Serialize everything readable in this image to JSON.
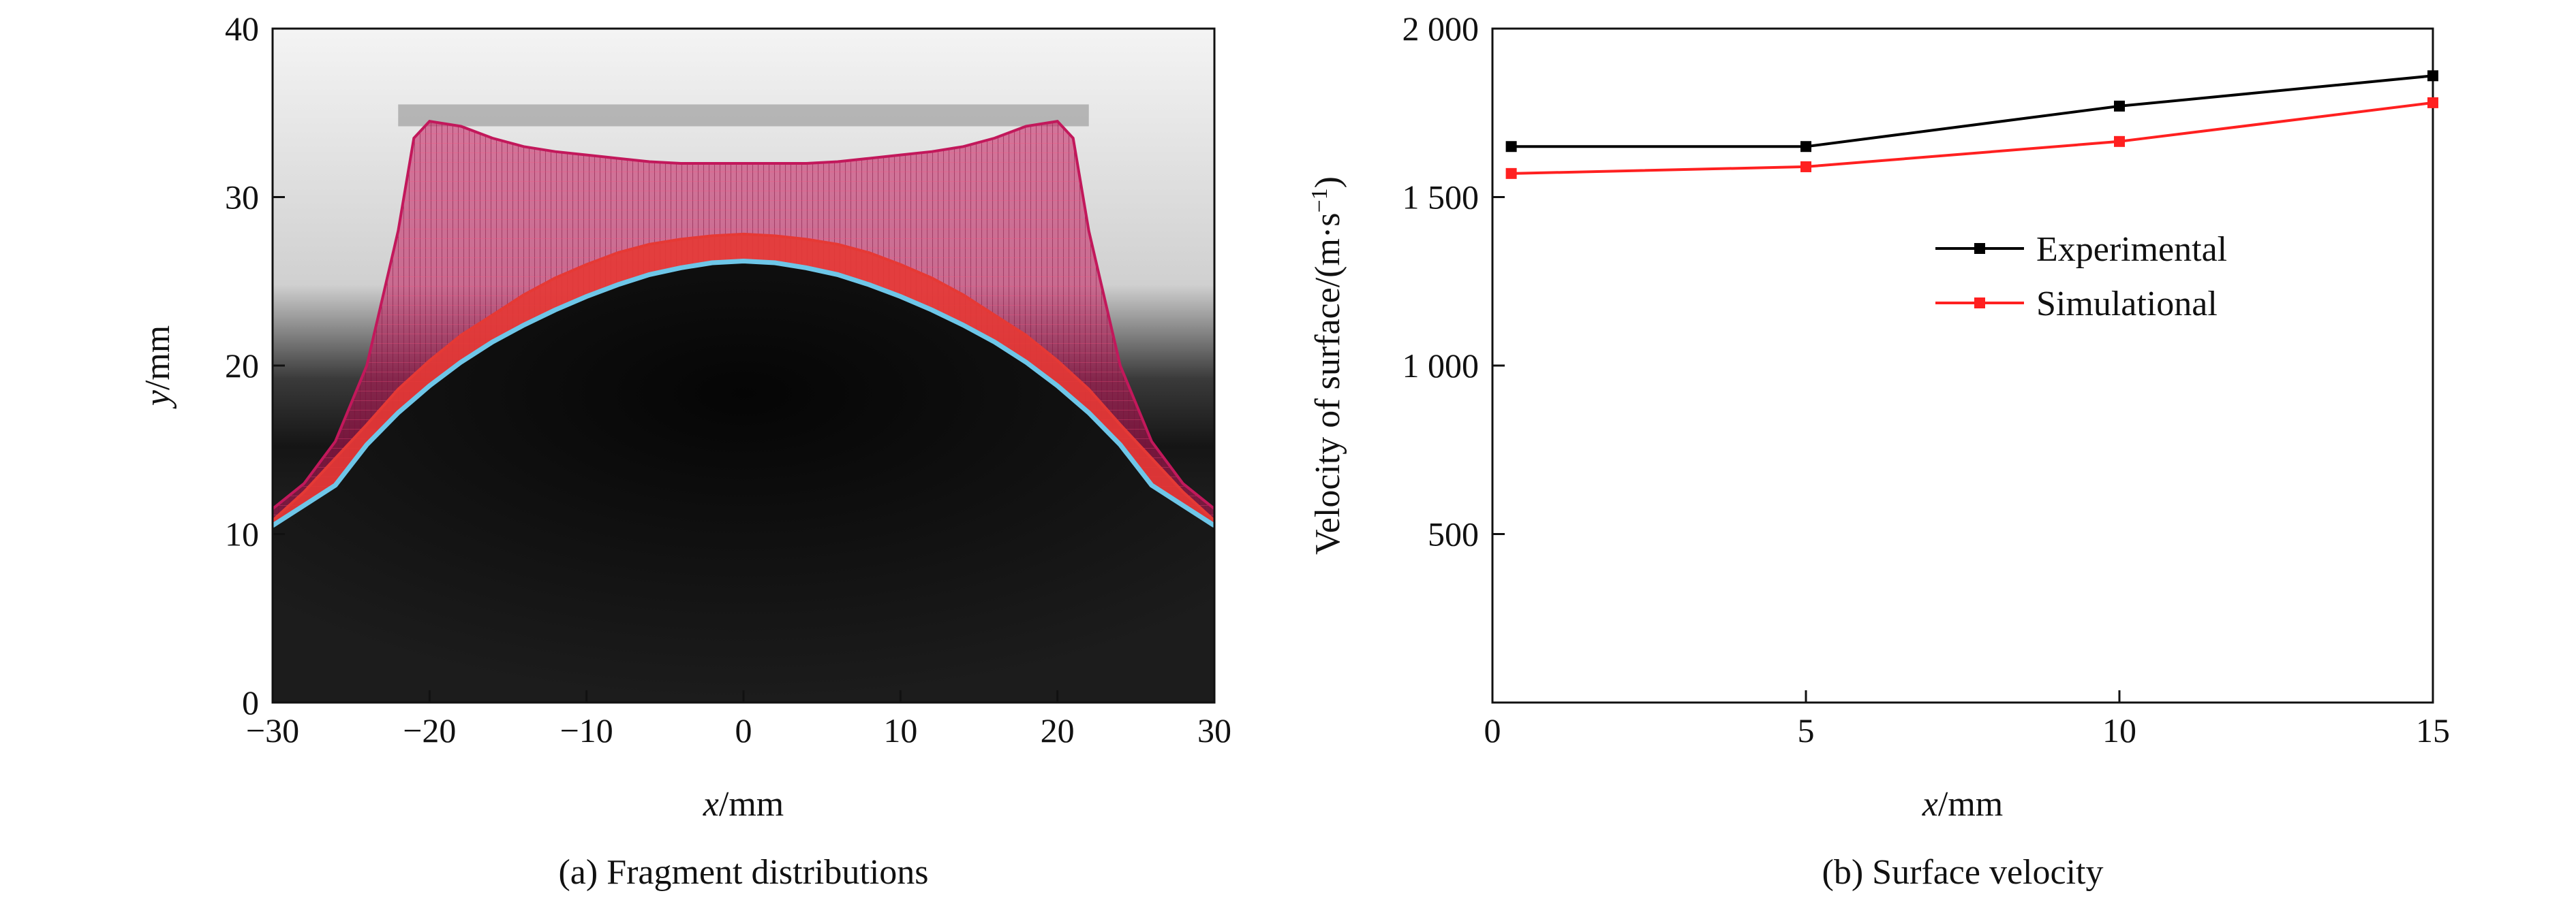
{
  "chart_data": [
    {
      "panel": "a",
      "type": "line",
      "caption": "(a) Fragment distributions",
      "xlabel": {
        "var": "x",
        "unit": "/mm"
      },
      "ylabel": {
        "var": "y",
        "unit": "/mm"
      },
      "xlim": [
        -30,
        30
      ],
      "ylim": [
        0,
        40
      ],
      "xticks": [
        -30,
        -20,
        -10,
        0,
        10,
        20,
        30
      ],
      "xtick_labels": [
        "−30",
        "−20",
        "−10",
        "0",
        "10",
        "20",
        "30"
      ],
      "yticks": [
        0,
        10,
        20,
        30,
        40
      ],
      "ytick_labels": [
        "0",
        "10",
        "20",
        "30",
        "40"
      ],
      "background": "radiograph",
      "series": [
        {
          "color": "#c2185b",
          "x": [
            -30,
            -28,
            -26,
            -24,
            -22,
            -21,
            -20,
            -18,
            -16,
            -14,
            -12,
            -10,
            -8,
            -6,
            -4,
            -2,
            0,
            2,
            4,
            6,
            8,
            10,
            12,
            14,
            16,
            18,
            20,
            21,
            22,
            24,
            26,
            28,
            30
          ],
          "y": [
            11.5,
            13,
            15.5,
            20,
            28,
            33.5,
            34.5,
            34.2,
            33.5,
            33,
            32.7,
            32.5,
            32.3,
            32.1,
            32,
            32,
            32,
            32,
            32,
            32.1,
            32.3,
            32.5,
            32.7,
            33,
            33.5,
            34.2,
            34.5,
            33.5,
            28,
            20,
            15.5,
            13,
            11.5
          ]
        },
        {
          "color": "#e53935",
          "x": [
            -30,
            -28,
            -26,
            -24,
            -22,
            -20,
            -18,
            -16,
            -14,
            -12,
            -10,
            -8,
            -6,
            -4,
            -2,
            0,
            2,
            4,
            6,
            8,
            10,
            12,
            14,
            16,
            18,
            20,
            22,
            24,
            26,
            28,
            30
          ],
          "y": [
            10.8,
            12.5,
            14.5,
            16.5,
            18.6,
            20.3,
            21.8,
            23.0,
            24.2,
            25.2,
            26.0,
            26.7,
            27.2,
            27.5,
            27.7,
            27.8,
            27.7,
            27.5,
            27.2,
            26.7,
            26.0,
            25.2,
            24.2,
            23.0,
            21.8,
            20.3,
            18.6,
            16.5,
            14.5,
            12.5,
            10.8
          ]
        },
        {
          "color": "#6ec6e8",
          "x": [
            -30,
            -28,
            -26,
            -24,
            -22,
            -20,
            -18,
            -16,
            -14,
            -12,
            -10,
            -8,
            -6,
            -4,
            -2,
            0,
            2,
            4,
            6,
            8,
            10,
            12,
            14,
            16,
            18,
            20,
            22,
            24,
            26,
            28,
            30
          ],
          "y": [
            10.5,
            11.7,
            12.9,
            15.3,
            17.2,
            18.8,
            20.2,
            21.4,
            22.4,
            23.3,
            24.1,
            24.8,
            25.4,
            25.8,
            26.1,
            26.2,
            26.1,
            25.8,
            25.4,
            24.8,
            24.1,
            23.3,
            22.4,
            21.4,
            20.2,
            18.8,
            17.2,
            15.3,
            12.9,
            11.7,
            10.5
          ]
        }
      ]
    },
    {
      "panel": "b",
      "type": "line",
      "caption": "(b) Surface velocity",
      "xlabel": {
        "var": "x",
        "unit": "/mm"
      },
      "ylabel": {
        "pre": "Velocity of surface/(m·s",
        "sup": "−1",
        "post": ")"
      },
      "xlim": [
        0,
        15
      ],
      "ylim": [
        0,
        2000
      ],
      "xticks": [
        0,
        5,
        10,
        15
      ],
      "xtick_labels": [
        "0",
        "5",
        "10",
        "15"
      ],
      "yticks": [
        500,
        1000,
        1500,
        2000
      ],
      "ytick_labels": [
        "500",
        "1 000",
        "1 500",
        "2 000"
      ],
      "legend_position": "center-right",
      "series": [
        {
          "name": "Experimental",
          "color": "#000000",
          "x": [
            0.3,
            5,
            10,
            15
          ],
          "y": [
            1650,
            1650,
            1770,
            1860
          ]
        },
        {
          "name": "Simulational",
          "color": "#ff2020",
          "x": [
            0.3,
            5,
            10,
            15
          ],
          "y": [
            1570,
            1590,
            1665,
            1780
          ]
        }
      ]
    }
  ]
}
